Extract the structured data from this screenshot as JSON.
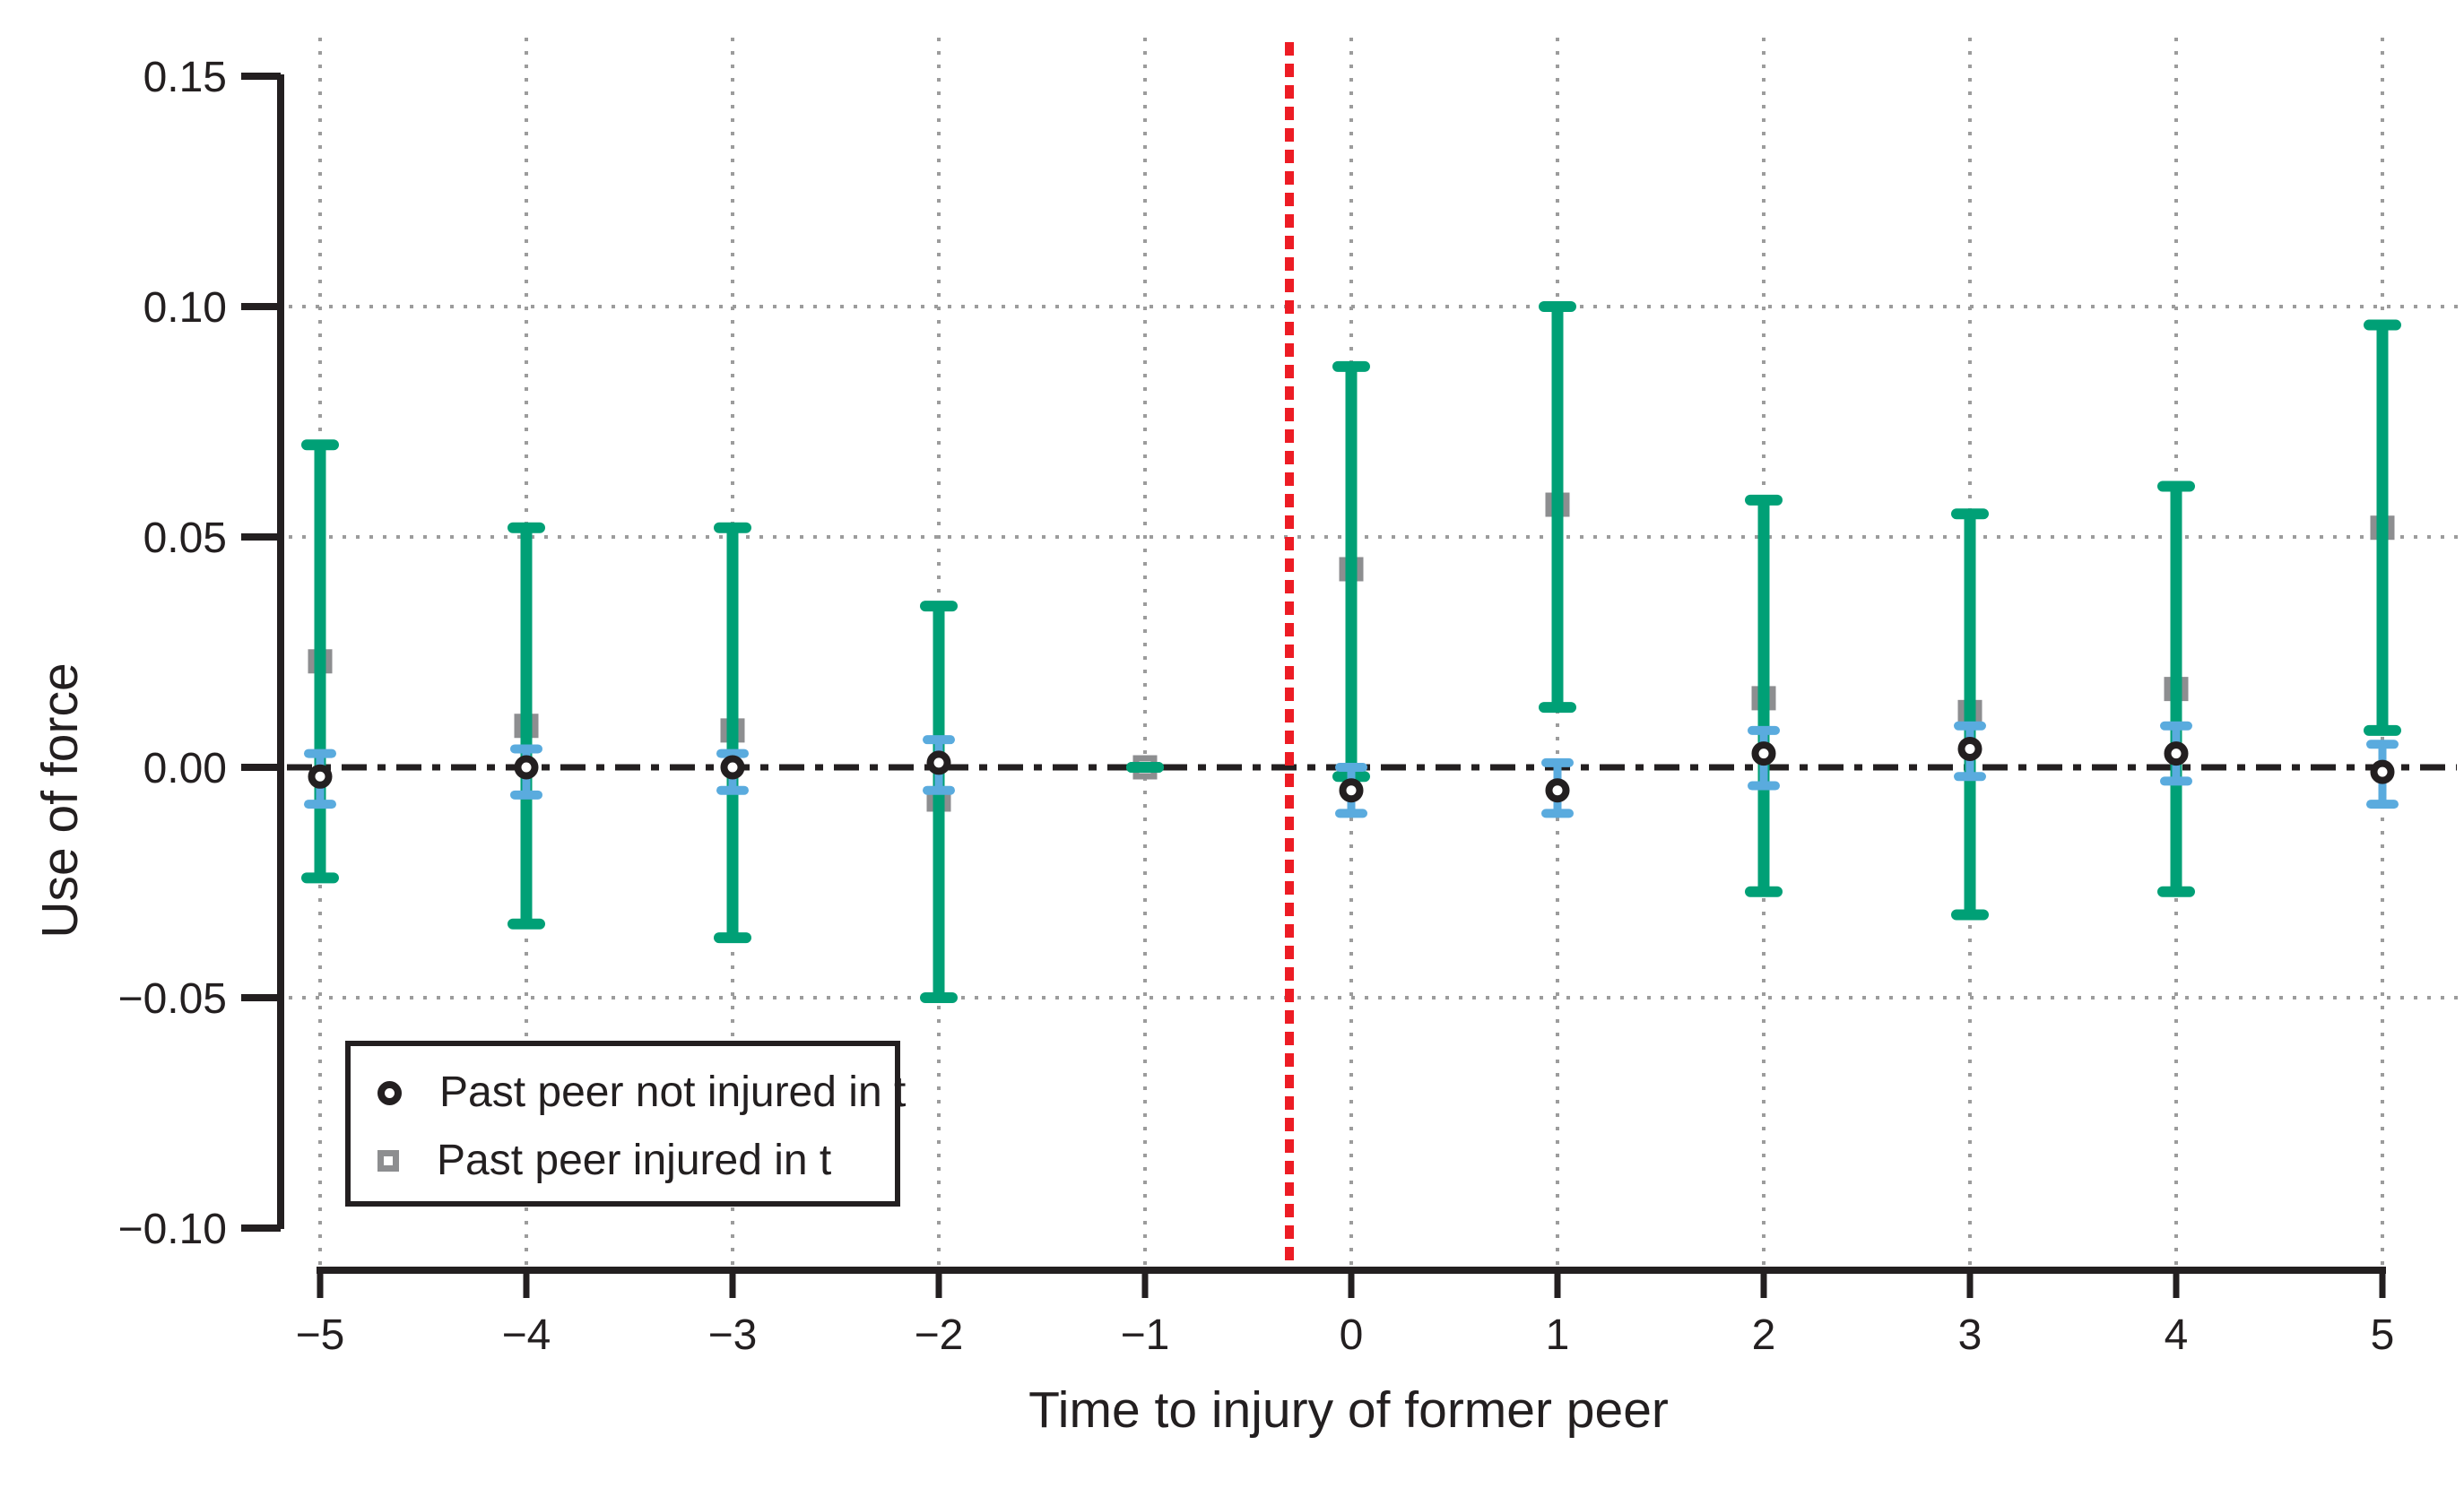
{
  "figure": {
    "ylabel": "Use of force",
    "xlabel": "Time to injury of former peer",
    "y_tick_labels": [
      "0.15",
      "0.10",
      "0.05",
      "0.00",
      "−0.05",
      "−0.10"
    ],
    "x_tick_labels": [
      "−5",
      "−4",
      "−3",
      "−2",
      "−1",
      "0",
      "1",
      "2",
      "3",
      "4",
      "5"
    ],
    "legend": {
      "items": [
        {
          "label": "Past peer not injured in t",
          "marker": "circle"
        },
        {
          "label": "Past peer injured in t",
          "marker": "square"
        }
      ]
    }
  },
  "colors": {
    "ink": "#231f20",
    "green_ci": "#00a076",
    "blue_ci": "#5aabde",
    "red_event_line": "#ed1c24",
    "gray_marker": "#8d8e90",
    "gridline": "#9c9c9c",
    "background": "#ffffff"
  },
  "chart_data": {
    "type": "scatter",
    "title": "",
    "xlabel": "Time to injury of former peer",
    "ylabel": "Use of force",
    "x": [
      -5,
      -4,
      -3,
      -2,
      -1,
      0,
      1,
      2,
      3,
      4,
      5
    ],
    "xlim": [
      -5.2,
      5.4
    ],
    "ylim": [
      -0.109,
      0.158
    ],
    "y_ticks": [
      0.15,
      0.1,
      0.05,
      0.0,
      -0.05,
      -0.1
    ],
    "grid": {
      "style": "dotted",
      "h_gridlines_at": [
        0.1,
        0.05,
        -0.05
      ],
      "v_gridlines_at": [
        -5,
        -4,
        -3,
        -2,
        -1,
        0,
        1,
        2,
        3,
        4,
        5
      ]
    },
    "reference_lines": [
      {
        "axis": "y",
        "value": 0,
        "style": "dashed",
        "color": "#231f20"
      },
      {
        "axis": "x",
        "value": -0.3,
        "style": "dashed",
        "color": "#ed1c24"
      }
    ],
    "legend_position": "lower-left",
    "series": [
      {
        "name": "Past peer not injured in t",
        "marker": "circle",
        "marker_color": "#231f20",
        "ci_color": "#5aabde",
        "estimates": [
          -0.002,
          0.0,
          0.0,
          0.001,
          null,
          -0.005,
          -0.005,
          0.003,
          0.004,
          0.003,
          -0.001
        ],
        "ci_low": [
          -0.008,
          -0.006,
          -0.005,
          -0.005,
          null,
          -0.01,
          -0.01,
          -0.004,
          -0.002,
          -0.003,
          -0.008
        ],
        "ci_high": [
          0.003,
          0.004,
          0.003,
          0.006,
          null,
          0.0,
          0.001,
          0.008,
          0.009,
          0.009,
          0.005
        ]
      },
      {
        "name": "Past peer injured in t",
        "marker": "square",
        "marker_color": "#8d8e90",
        "ci_color": "#00a076",
        "estimates": [
          0.023,
          0.009,
          0.008,
          -0.007,
          0.0,
          0.043,
          0.057,
          0.015,
          0.012,
          0.017,
          0.052
        ],
        "ci_low": [
          -0.024,
          -0.034,
          -0.037,
          -0.05,
          0.0,
          -0.002,
          0.013,
          -0.027,
          -0.032,
          -0.027,
          0.008
        ],
        "ci_high": [
          0.07,
          0.052,
          0.052,
          0.035,
          0.0,
          0.087,
          0.1,
          0.058,
          0.055,
          0.061,
          0.096
        ]
      }
    ]
  }
}
